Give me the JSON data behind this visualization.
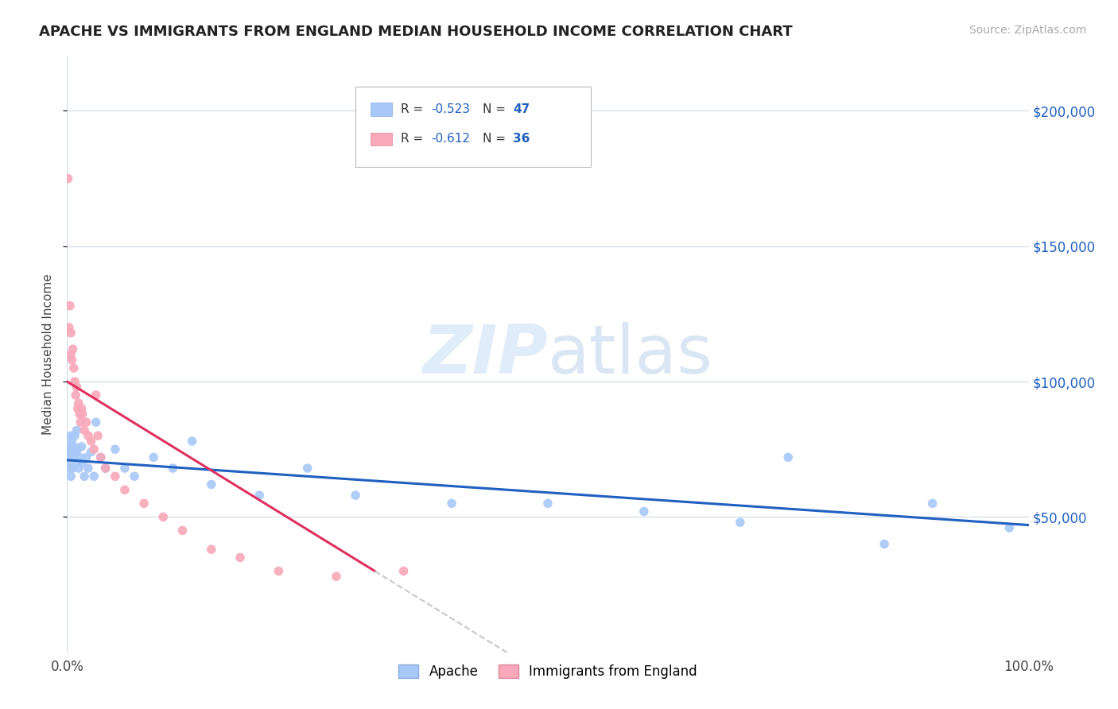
{
  "title": "APACHE VS IMMIGRANTS FROM ENGLAND MEDIAN HOUSEHOLD INCOME CORRELATION CHART",
  "source": "Source: ZipAtlas.com",
  "ylabel": "Median Household Income",
  "xlim": [
    0,
    1.0
  ],
  "ylim": [
    0,
    220000
  ],
  "xtick_labels": [
    "0.0%",
    "100.0%"
  ],
  "ytick_labels": [
    "$50,000",
    "$100,000",
    "$150,000",
    "$200,000"
  ],
  "ytick_values": [
    50000,
    100000,
    150000,
    200000
  ],
  "watermark_zip": "ZIP",
  "watermark_atlas": "atlas",
  "legend1_r": "-0.523",
  "legend1_n": "47",
  "legend2_r": "-0.612",
  "legend2_n": "36",
  "blue_color": "#a8c8f8",
  "pink_color": "#f8a8b8",
  "blue_line_color": "#2060c0",
  "pink_line_color": "#e03060",
  "dashed_line_color": "#c8c8c8",
  "apache_x": [
    0.001,
    0.002,
    0.002,
    0.003,
    0.003,
    0.004,
    0.004,
    0.005,
    0.005,
    0.006,
    0.006,
    0.007,
    0.008,
    0.009,
    0.01,
    0.01,
    0.011,
    0.012,
    0.013,
    0.015,
    0.016,
    0.018,
    0.02,
    0.022,
    0.025,
    0.028,
    0.03,
    0.035,
    0.04,
    0.05,
    0.06,
    0.07,
    0.09,
    0.11,
    0.13,
    0.15,
    0.2,
    0.25,
    0.3,
    0.4,
    0.5,
    0.6,
    0.7,
    0.75,
    0.85,
    0.9,
    0.98
  ],
  "apache_y": [
    72000,
    74000,
    68000,
    76000,
    70000,
    80000,
    65000,
    74000,
    78000,
    72000,
    68000,
    76000,
    80000,
    74000,
    82000,
    70000,
    75000,
    68000,
    72000,
    76000,
    70000,
    65000,
    72000,
    68000,
    74000,
    65000,
    85000,
    72000,
    68000,
    75000,
    68000,
    65000,
    72000,
    68000,
    78000,
    62000,
    58000,
    68000,
    58000,
    55000,
    55000,
    52000,
    48000,
    72000,
    40000,
    55000,
    46000
  ],
  "england_x": [
    0.001,
    0.002,
    0.003,
    0.004,
    0.004,
    0.005,
    0.006,
    0.007,
    0.008,
    0.009,
    0.01,
    0.011,
    0.012,
    0.013,
    0.014,
    0.015,
    0.016,
    0.018,
    0.02,
    0.022,
    0.025,
    0.028,
    0.03,
    0.032,
    0.035,
    0.04,
    0.05,
    0.06,
    0.08,
    0.1,
    0.12,
    0.15,
    0.18,
    0.22,
    0.28,
    0.35
  ],
  "england_y": [
    175000,
    120000,
    128000,
    118000,
    110000,
    108000,
    112000,
    105000,
    100000,
    95000,
    98000,
    90000,
    92000,
    88000,
    85000,
    90000,
    88000,
    82000,
    85000,
    80000,
    78000,
    75000,
    95000,
    80000,
    72000,
    68000,
    65000,
    60000,
    55000,
    50000,
    45000,
    38000,
    35000,
    30000,
    28000,
    30000
  ],
  "apache_line_x": [
    0.0,
    1.0
  ],
  "apache_line_y": [
    71000,
    47000
  ],
  "england_line_x0": 0.0,
  "england_line_x1": 0.32,
  "england_line_y0": 100000,
  "england_line_y1": 30000,
  "dashed_line_x0": 0.32,
  "dashed_line_x1": 0.46,
  "title_fontsize": 13,
  "source_fontsize": 10,
  "axis_label_fontsize": 11,
  "tick_fontsize": 12
}
